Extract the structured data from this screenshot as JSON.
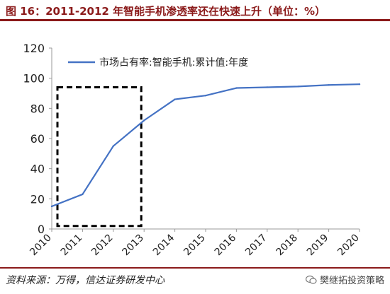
{
  "header": {
    "title": "图 16：2011-2012 年智能手机渗透率还在快速上升（单位：%）"
  },
  "footer": {
    "source": "资料来源：万得，信达证券研发中心",
    "watermark": "樊继拓投资策略",
    "watermark_icon": "wechat-icon"
  },
  "colors": {
    "accent": "#8b1a1a",
    "line": "#4472c4",
    "box": "#000000"
  },
  "chart_data": {
    "type": "line",
    "categories": [
      "2010",
      "2011",
      "2012",
      "2013",
      "2014",
      "2015",
      "2016",
      "2017",
      "2018",
      "2019",
      "2020"
    ],
    "series": [
      {
        "name": "市场占有率:智能手机:累计值:年度",
        "values": [
          15,
          23,
          55,
          72,
          86,
          88.5,
          93.5,
          94,
          94.5,
          95.5,
          96
        ]
      }
    ],
    "ylim": [
      0,
      120
    ],
    "yticks": [
      0,
      20,
      40,
      60,
      80,
      100,
      120
    ],
    "legend_position": "top-left",
    "highlight_box": {
      "from": "2010",
      "to": "2013",
      "y_top": 94,
      "y_bottom": 2,
      "style": "dashed"
    },
    "grid": false
  }
}
